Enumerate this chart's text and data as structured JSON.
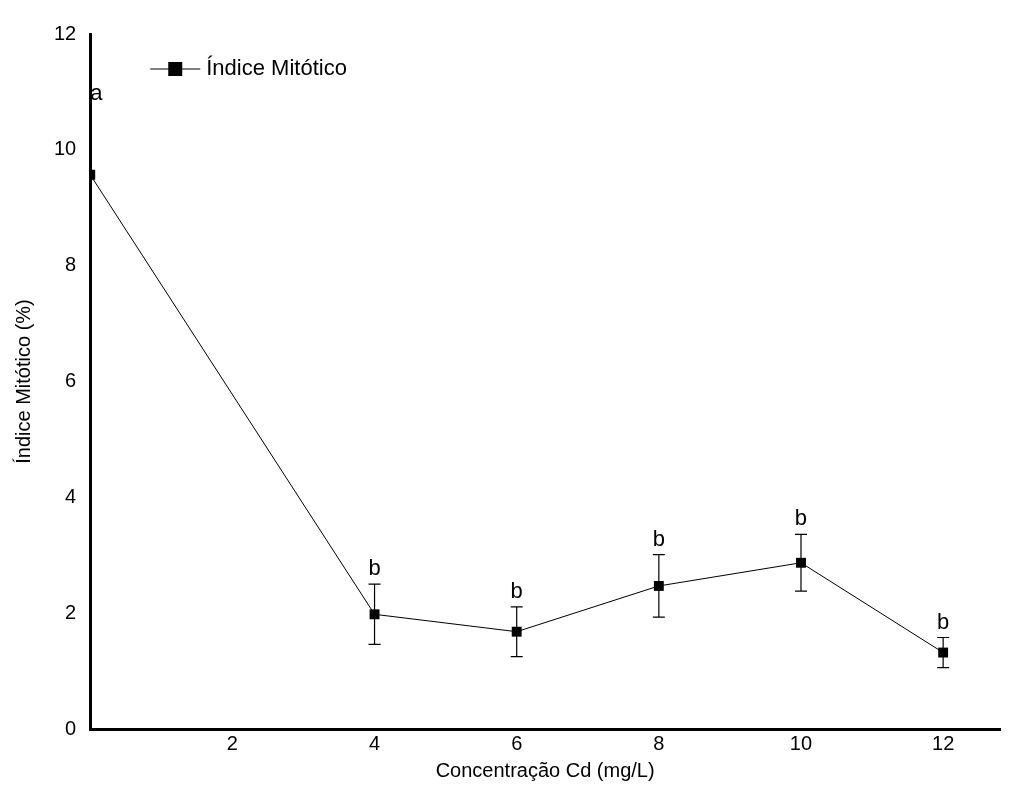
{
  "chart_data": {
    "type": "line",
    "xlabel": "Concentração Cd (mg/L)",
    "ylabel": "Índice Mitótico (%)",
    "x": [
      0,
      4,
      6,
      8,
      10,
      12
    ],
    "series": [
      {
        "name": "Índice Mitótico",
        "color": "#000000",
        "values": [
          9.57,
          1.98,
          1.68,
          2.47,
          2.87,
          1.32
        ],
        "errors": [
          null,
          0.52,
          0.43,
          0.54,
          0.49,
          0.26
        ]
      }
    ],
    "xlim": [
      0,
      12.8
    ],
    "xticks": [
      2,
      4,
      6,
      8,
      10,
      12
    ],
    "ylim": [
      0,
      12
    ],
    "yticks": [
      0,
      2,
      4,
      6,
      8,
      10,
      12
    ],
    "grid": false,
    "legend": "top left",
    "marker": "square",
    "line_style": "solid",
    "annotations": [
      "a",
      "b",
      "b",
      "b",
      "b",
      "b"
    ]
  }
}
